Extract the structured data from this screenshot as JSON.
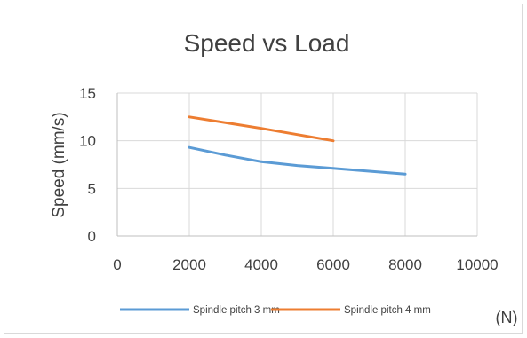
{
  "chart_data": {
    "type": "line",
    "title": "Speed vs Load",
    "ylabel": "Speed (mm/s)",
    "xunit": "(N)",
    "xlim": [
      0,
      10000
    ],
    "ylim": [
      0,
      15
    ],
    "xticks": [
      0,
      2000,
      4000,
      6000,
      8000,
      10000
    ],
    "yticks": [
      0,
      5,
      10,
      15
    ],
    "grid": "vertical and horizontal",
    "legend_position": "bottom",
    "series": [
      {
        "name": "Spindle pitch 3 mm",
        "color": "#5b9bd5",
        "points": [
          [
            2000,
            9.3
          ],
          [
            3000,
            8.5
          ],
          [
            4000,
            7.8
          ],
          [
            5000,
            7.4
          ],
          [
            6000,
            7.1
          ],
          [
            7000,
            6.8
          ],
          [
            8000,
            6.5
          ]
        ]
      },
      {
        "name": "Spindle pitch 4 mm",
        "color": "#ed7d31",
        "points": [
          [
            2000,
            12.5
          ],
          [
            4000,
            11.3
          ],
          [
            6000,
            10.0
          ]
        ]
      }
    ]
  }
}
